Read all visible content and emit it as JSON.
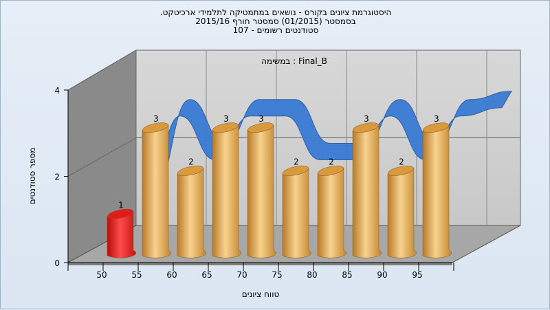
{
  "chart_data": {
    "type": "bar",
    "title": [
      "היסטוגרמת ציונים בקורס - נושאים במתמטיקה לתלמידי ארכיטקט.",
      "בסמסטר  (01/2015)  סמסטר חורף 2015/16",
      "סטודנטים רשומים - 107"
    ],
    "series_label": "Final_B : במשימה",
    "xlabel": "טווח ציונים",
    "ylabel": "מספר סטודנטים",
    "categories": [
      "50",
      "55",
      "60",
      "65",
      "70",
      "75",
      "80",
      "85",
      "90",
      "95"
    ],
    "x_ticks": [
      "50",
      "55",
      "60",
      "65",
      "70",
      "75",
      "80",
      "85",
      "90",
      "95"
    ],
    "values": [
      1,
      3,
      2,
      3,
      3,
      2,
      2,
      3,
      2,
      3
    ],
    "y_ticks": [
      "0",
      "2",
      "4"
    ],
    "ylim": [
      0,
      4
    ],
    "grid": true,
    "bar_colors": {
      "highlight": "#e82020",
      "default": "#e8a84a"
    },
    "highlight_index": 0,
    "trend_color": "#3a7bd5"
  }
}
